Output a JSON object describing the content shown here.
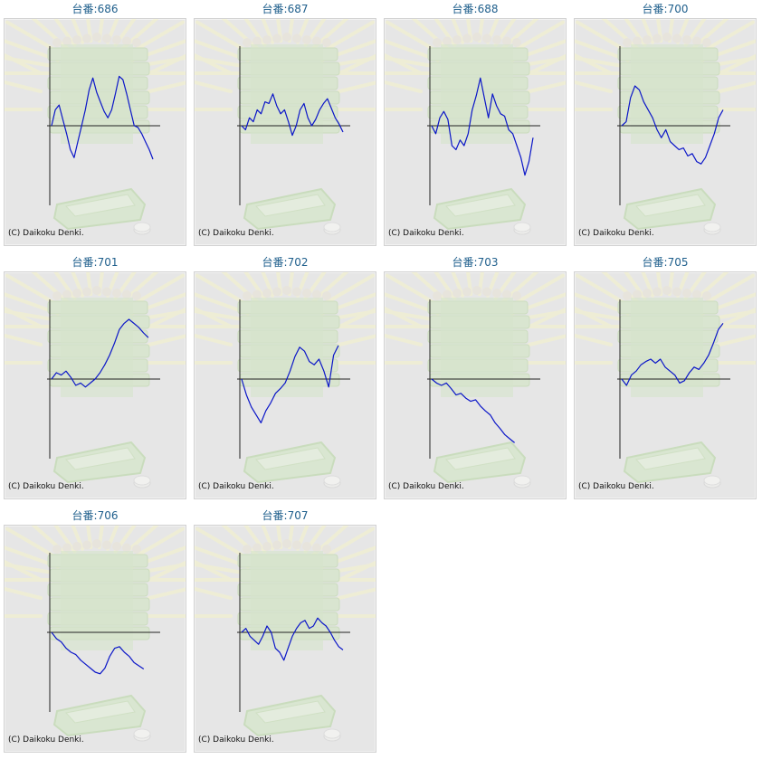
{
  "title_prefix": "台番:",
  "credit": "(C) Daikoku Denki.",
  "colors": {
    "line": "#0b16c8",
    "axis": "#222222",
    "title": "#1f5f8c",
    "panel_bg": "#e6e6e6"
  },
  "icon_names": [
    "sunburst-watermark",
    "stacked-trays-watermark",
    "tray-watermark",
    "coin-watermark"
  ],
  "chart_data": [
    {
      "type": "line",
      "machine": "686",
      "ylim": [
        -100,
        100
      ],
      "y": [
        0,
        20,
        26,
        8,
        -10,
        -30,
        -40,
        -20,
        0,
        20,
        45,
        60,
        42,
        30,
        18,
        10,
        20,
        40,
        62,
        58,
        40,
        20,
        0,
        -2,
        -10,
        -20,
        -30,
        -42
      ]
    },
    {
      "type": "line",
      "machine": "687",
      "ylim": [
        -100,
        100
      ],
      "y": [
        0,
        -5,
        10,
        5,
        20,
        15,
        30,
        28,
        40,
        25,
        15,
        20,
        5,
        -12,
        0,
        20,
        28,
        10,
        0,
        8,
        20,
        28,
        34,
        22,
        10,
        2,
        -8
      ]
    },
    {
      "type": "line",
      "machine": "688",
      "ylim": [
        -100,
        100
      ],
      "y": [
        0,
        -10,
        10,
        18,
        8,
        -25,
        -30,
        -18,
        -25,
        -10,
        20,
        38,
        60,
        35,
        10,
        40,
        25,
        15,
        12,
        -5,
        -10,
        -25,
        -40,
        -62,
        -45,
        -15
      ]
    },
    {
      "type": "line",
      "machine": "700",
      "ylim": [
        -100,
        100
      ],
      "y": [
        0,
        5,
        35,
        50,
        45,
        30,
        20,
        10,
        -5,
        -15,
        -5,
        -20,
        -25,
        -30,
        -28,
        -38,
        -35,
        -45,
        -48,
        -40,
        -25,
        -10,
        10,
        20
      ]
    },
    {
      "type": "line",
      "machine": "701",
      "ylim": [
        -100,
        100
      ],
      "y": [
        0,
        8,
        5,
        10,
        2,
        -8,
        -5,
        -10,
        -5,
        0,
        8,
        18,
        30,
        45,
        62,
        70,
        75,
        70,
        65,
        58,
        52
      ]
    },
    {
      "type": "line",
      "machine": "702",
      "ylim": [
        -100,
        100
      ],
      "y": [
        0,
        -20,
        -35,
        -45,
        -55,
        -40,
        -30,
        -18,
        -12,
        -5,
        10,
        28,
        40,
        35,
        22,
        18,
        25,
        10,
        -10,
        30,
        42
      ]
    },
    {
      "type": "line",
      "machine": "703",
      "ylim": [
        -100,
        100
      ],
      "y": [
        0,
        -5,
        -8,
        -5,
        -12,
        -20,
        -18,
        -24,
        -28,
        -26,
        -34,
        -40,
        -45,
        -55,
        -62,
        -70,
        -75,
        -80
      ]
    },
    {
      "type": "line",
      "machine": "705",
      "ylim": [
        -100,
        100
      ],
      "y": [
        0,
        -8,
        5,
        10,
        18,
        22,
        25,
        20,
        25,
        15,
        10,
        5,
        -5,
        -2,
        8,
        15,
        12,
        20,
        30,
        45,
        62,
        70
      ]
    },
    {
      "type": "line",
      "machine": "706",
      "ylim": [
        -100,
        100
      ],
      "y": [
        0,
        -8,
        -12,
        -20,
        -25,
        -28,
        -35,
        -40,
        -45,
        -50,
        -52,
        -45,
        -30,
        -20,
        -18,
        -25,
        -30,
        -38,
        -42,
        -46
      ]
    },
    {
      "type": "line",
      "machine": "707",
      "ylim": [
        -100,
        100
      ],
      "y": [
        0,
        5,
        -5,
        -10,
        -15,
        -5,
        8,
        0,
        -20,
        -25,
        -35,
        -20,
        -5,
        5,
        12,
        15,
        5,
        8,
        18,
        12,
        8,
        0,
        -10,
        -18,
        -22
      ]
    }
  ]
}
